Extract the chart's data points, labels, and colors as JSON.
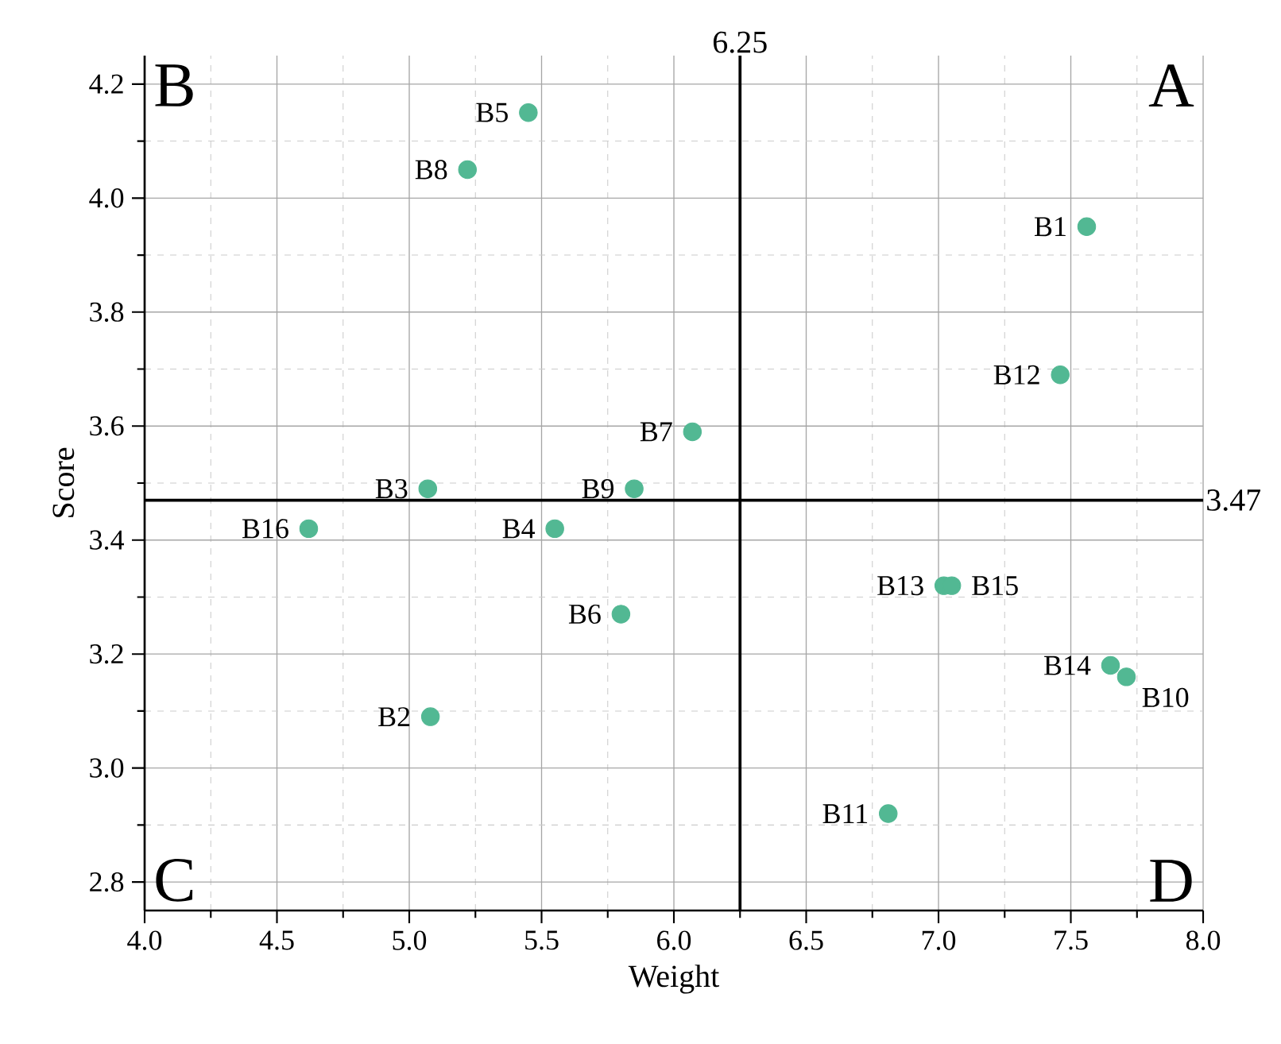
{
  "chart_data": {
    "type": "scatter",
    "xlabel": "Weight",
    "ylabel": "Score",
    "x": [
      7.56,
      5.08,
      5.07,
      5.55,
      5.45,
      5.8,
      6.07,
      5.22,
      5.85,
      7.71,
      6.81,
      7.46,
      7.02,
      7.65,
      7.05,
      4.62
    ],
    "values": [
      3.95,
      3.09,
      3.49,
      3.42,
      4.15,
      3.27,
      3.59,
      4.05,
      3.49,
      3.16,
      2.92,
      3.69,
      3.32,
      3.18,
      3.32,
      3.42
    ],
    "color": "#52b893",
    "marker": "circle",
    "xlim": [
      4.0,
      8.0
    ],
    "ylim": [
      2.75,
      4.25
    ],
    "xticks": [
      {
        "value": 4,
        "label": "4.0"
      },
      4.5,
      {
        "value": 5,
        "label": "5.0"
      },
      5.5,
      {
        "value": 6,
        "label": "6.0"
      },
      6.5,
      {
        "value": 7,
        "label": "7.0"
      },
      7.5,
      {
        "value": 8,
        "label": "8.0"
      }
    ],
    "yticks": [
      2.8,
      {
        "value": 3,
        "label": "3.0"
      },
      3.2,
      3.4,
      3.6,
      3.8,
      {
        "value": 4,
        "label": "4.0"
      },
      4.2
    ],
    "grid": true,
    "ref_lines": [
      {
        "axis": "x",
        "value": 6.25,
        "label": "6.25",
        "color": "#000000"
      },
      {
        "axis": "y",
        "value": 3.47,
        "label": "3.47",
        "color": "#000000"
      }
    ],
    "annotations": [
      "B",
      "A",
      "C",
      "D",
      {
        "text": "B1",
        "x": 7.56,
        "y": 3.95
      },
      {
        "text": "B2",
        "x": 5.08,
        "y": 3.09
      },
      {
        "text": "B3",
        "x": 5.07,
        "y": 3.49
      },
      {
        "text": "B4",
        "x": 5.55,
        "y": 3.42
      },
      {
        "text": "B5",
        "x": 5.45,
        "y": 4.15
      },
      {
        "text": "B6",
        "x": 5.8,
        "y": 3.27
      },
      {
        "text": "B7",
        "x": 6.07,
        "y": 3.59
      },
      {
        "text": "B8",
        "x": 5.22,
        "y": 4.05
      },
      {
        "text": "B9",
        "x": 5.85,
        "y": 3.49
      },
      {
        "text": "B10",
        "x": 7.71,
        "y": 3.16
      },
      {
        "text": "B11",
        "x": 6.81,
        "y": 2.92
      },
      {
        "text": "B12",
        "x": 7.46,
        "y": 3.69
      },
      {
        "text": "B13",
        "x": 7.02,
        "y": 3.32
      },
      {
        "text": "B14",
        "x": 7.65,
        "y": 3.18
      },
      {
        "text": "B15",
        "x": 7.05,
        "y": 3.32
      },
      {
        "text": "B16",
        "x": 4.62,
        "y": 3.42
      }
    ]
  }
}
